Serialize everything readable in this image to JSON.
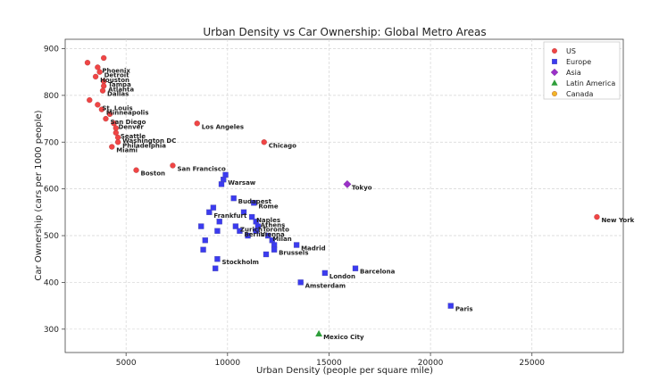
{
  "chart_data": {
    "type": "scatter",
    "title": "Urban Density vs Car Ownership: Global Metro Areas",
    "xlabel": "Urban Density (people per square mile)",
    "ylabel": "Car Ownership (cars per 1000 people)",
    "xlim": [
      2000,
      29500
    ],
    "ylim": [
      250,
      920
    ],
    "xticks": [
      5000,
      10000,
      15000,
      20000,
      25000
    ],
    "yticks": [
      300,
      400,
      500,
      600,
      700,
      800,
      900
    ],
    "grid": true,
    "legend_position": "top-right",
    "series": [
      {
        "name": "US",
        "color": "#f04545",
        "marker": "circle",
        "points": [
          {
            "x": 3100,
            "y": 870,
            "label": ""
          },
          {
            "x": 3900,
            "y": 880,
            "label": ""
          },
          {
            "x": 3600,
            "y": 860,
            "label": "Phoenix"
          },
          {
            "x": 3700,
            "y": 850,
            "label": "Detroit"
          },
          {
            "x": 3500,
            "y": 840,
            "label": "Houston"
          },
          {
            "x": 3900,
            "y": 830,
            "label": "Tampa"
          },
          {
            "x": 3900,
            "y": 820,
            "label": "Atlanta"
          },
          {
            "x": 3850,
            "y": 810,
            "label": "Dallas"
          },
          {
            "x": 3200,
            "y": 790,
            "label": ""
          },
          {
            "x": 3600,
            "y": 780,
            "label": "St. Louis"
          },
          {
            "x": 3800,
            "y": 770,
            "label": "Minneapolis"
          },
          {
            "x": 4200,
            "y": 760,
            "label": ""
          },
          {
            "x": 4000,
            "y": 750,
            "label": "San Diego"
          },
          {
            "x": 4400,
            "y": 740,
            "label": "Denver"
          },
          {
            "x": 4500,
            "y": 720,
            "label": "Seattle"
          },
          {
            "x": 4500,
            "y": 730,
            "label": ""
          },
          {
            "x": 4600,
            "y": 710,
            "label": "Washington DC"
          },
          {
            "x": 4600,
            "y": 700,
            "label": "Philadelphia"
          },
          {
            "x": 4300,
            "y": 690,
            "label": "Miami"
          },
          {
            "x": 5500,
            "y": 640,
            "label": "Boston"
          },
          {
            "x": 7300,
            "y": 650,
            "label": "San Francisco"
          },
          {
            "x": 8500,
            "y": 740,
            "label": "Los Angeles"
          },
          {
            "x": 11800,
            "y": 700,
            "label": "Chicago"
          },
          {
            "x": 28200,
            "y": 540,
            "label": "New York"
          }
        ]
      },
      {
        "name": "Europe",
        "color": "#3b3bef",
        "marker": "square",
        "points": [
          {
            "x": 9900,
            "y": 630,
            "label": ""
          },
          {
            "x": 9800,
            "y": 620,
            "label": "Warsaw"
          },
          {
            "x": 9700,
            "y": 610,
            "label": ""
          },
          {
            "x": 10300,
            "y": 580,
            "label": "Budapest"
          },
          {
            "x": 11300,
            "y": 570,
            "label": "Rome"
          },
          {
            "x": 9100,
            "y": 550,
            "label": "Frankfurt"
          },
          {
            "x": 9300,
            "y": 560,
            "label": ""
          },
          {
            "x": 11200,
            "y": 540,
            "label": "Naples"
          },
          {
            "x": 10800,
            "y": 550,
            "label": ""
          },
          {
            "x": 9600,
            "y": 530,
            "label": ""
          },
          {
            "x": 8700,
            "y": 520,
            "label": ""
          },
          {
            "x": 11400,
            "y": 530,
            "label": "Athens"
          },
          {
            "x": 11500,
            "y": 520,
            "label": "Toronto"
          },
          {
            "x": 10400,
            "y": 520,
            "label": "Zurich"
          },
          {
            "x": 10600,
            "y": 510,
            "label": "Berlin"
          },
          {
            "x": 9500,
            "y": 510,
            "label": ""
          },
          {
            "x": 11400,
            "y": 510,
            "label": "Vienna"
          },
          {
            "x": 12000,
            "y": 500,
            "label": "Milan"
          },
          {
            "x": 11000,
            "y": 500,
            "label": ""
          },
          {
            "x": 12200,
            "y": 490,
            "label": ""
          },
          {
            "x": 8900,
            "y": 490,
            "label": ""
          },
          {
            "x": 12300,
            "y": 480,
            "label": ""
          },
          {
            "x": 13400,
            "y": 480,
            "label": "Madrid"
          },
          {
            "x": 12300,
            "y": 470,
            "label": "Brussels"
          },
          {
            "x": 8800,
            "y": 470,
            "label": ""
          },
          {
            "x": 11900,
            "y": 460,
            "label": ""
          },
          {
            "x": 9500,
            "y": 450,
            "label": "Stockholm"
          },
          {
            "x": 9400,
            "y": 430,
            "label": ""
          },
          {
            "x": 16300,
            "y": 430,
            "label": "Barcelona"
          },
          {
            "x": 14800,
            "y": 420,
            "label": "London"
          },
          {
            "x": 13600,
            "y": 400,
            "label": "Amsterdam"
          },
          {
            "x": 21000,
            "y": 350,
            "label": "Paris"
          }
        ]
      },
      {
        "name": "Asia",
        "color": "#9b30c8",
        "marker": "diamond",
        "points": [
          {
            "x": 15900,
            "y": 610,
            "label": "Tokyo"
          }
        ]
      },
      {
        "name": "Latin America",
        "color": "#2e9e3a",
        "marker": "triangle",
        "points": [
          {
            "x": 14500,
            "y": 290,
            "label": "Mexico City"
          }
        ]
      },
      {
        "name": "Canada",
        "color": "#f2b526",
        "marker": "circle",
        "points": []
      }
    ]
  }
}
